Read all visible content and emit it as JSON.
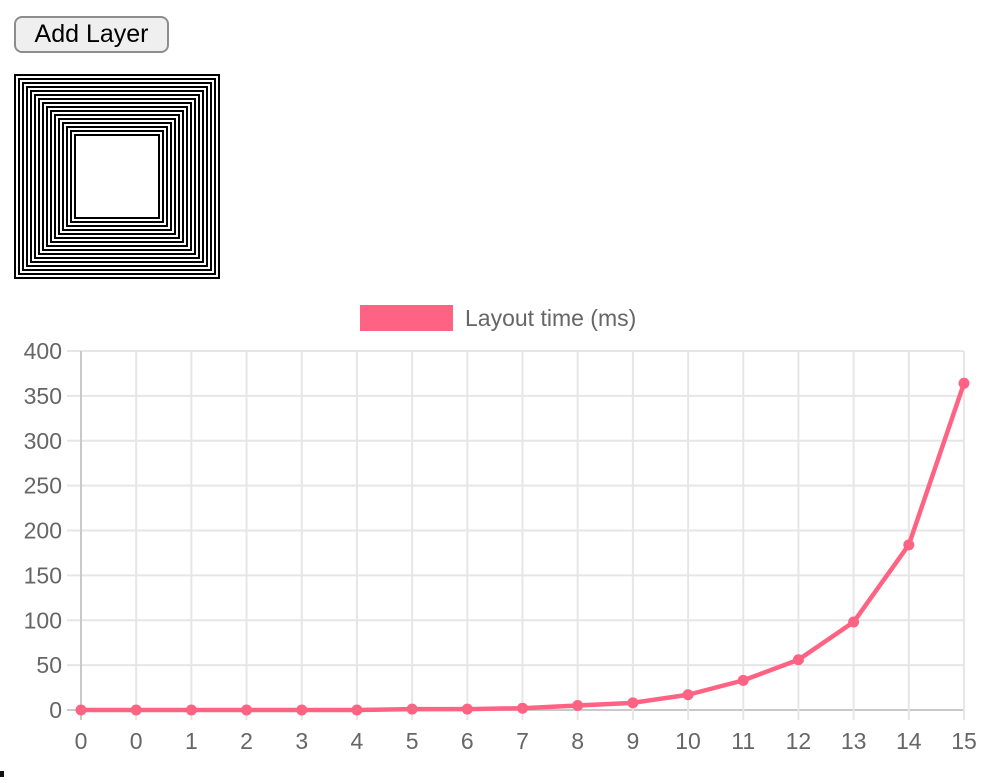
{
  "toolbar": {
    "add_layer_label": "Add Layer"
  },
  "layers_figure": {
    "count": 16,
    "outer_size": 206,
    "ring_period": 4,
    "stroke_color": "#000000",
    "stroke_width": 2
  },
  "chart_data": {
    "type": "line",
    "title": "",
    "legend": {
      "label": "Layout time (ms)",
      "position": "top",
      "swatch_color": "#FF6384"
    },
    "categories": [
      "0",
      "0",
      "1",
      "2",
      "3",
      "4",
      "5",
      "6",
      "7",
      "8",
      "9",
      "10",
      "11",
      "12",
      "13",
      "14",
      "15"
    ],
    "series": [
      {
        "name": "Layout time (ms)",
        "color": "#FF6384",
        "values": [
          0,
          0,
          0,
          0,
          0,
          0,
          1,
          1,
          2,
          5,
          8,
          17,
          33,
          56,
          98,
          184,
          364
        ]
      }
    ],
    "xlabel": "",
    "ylabel": "",
    "ylim": [
      0,
      400
    ],
    "ytick_step": 50,
    "grid": true,
    "grid_color": "#e6e6e6",
    "zero_line_color": "#c9c9c9",
    "tick_label_color": "#666666"
  }
}
